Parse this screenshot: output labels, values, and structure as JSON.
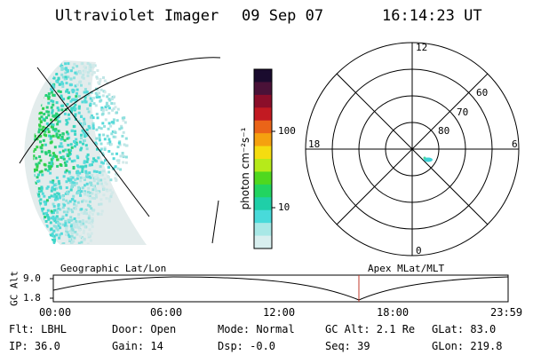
{
  "header": {
    "instrument": "Ultraviolet Imager",
    "date": "09 Sep 07",
    "time": "16:14:23 UT"
  },
  "colorbar": {
    "unit_label": "photon cm⁻²s⁻¹",
    "ticks": [
      "100",
      "10"
    ],
    "colors": [
      "#1a0b2e",
      "#4a1238",
      "#8b0e2a",
      "#c21a22",
      "#ea6418",
      "#f5a10f",
      "#f5dc10",
      "#b6ea1a",
      "#4fd81f",
      "#22d460",
      "#1fcfa8",
      "#48dada",
      "#a8e8e6",
      "#d8efef"
    ]
  },
  "polar_plot": {
    "mlt_labels": [
      "12",
      "18",
      "6",
      "0"
    ],
    "lat_labels": [
      "60",
      "70",
      "80"
    ]
  },
  "timeline": {
    "left_label": "Geographic Lat/Lon",
    "right_label": "Apex MLat/MLT",
    "y_axis_label": "GC Alt",
    "y_ticks": [
      "9.0",
      "1.8"
    ],
    "x_ticks": [
      "00:00",
      "06:00",
      "12:00",
      "18:00",
      "23:59"
    ],
    "marker_time": "16:14",
    "marker_color": "#c0392b"
  },
  "status": {
    "flt": "Flt: LBHL",
    "door": "Door: Open",
    "mode": "Mode: Normal",
    "gc_alt": "GC Alt: 2.1 Re",
    "glat": "GLat:  83.0",
    "ip": "IP: 36.0",
    "gain": "Gain: 14",
    "dsp": "Dsp:   -0.0",
    "seq": "Seq: 39",
    "glon": "GLon: 219.8"
  }
}
